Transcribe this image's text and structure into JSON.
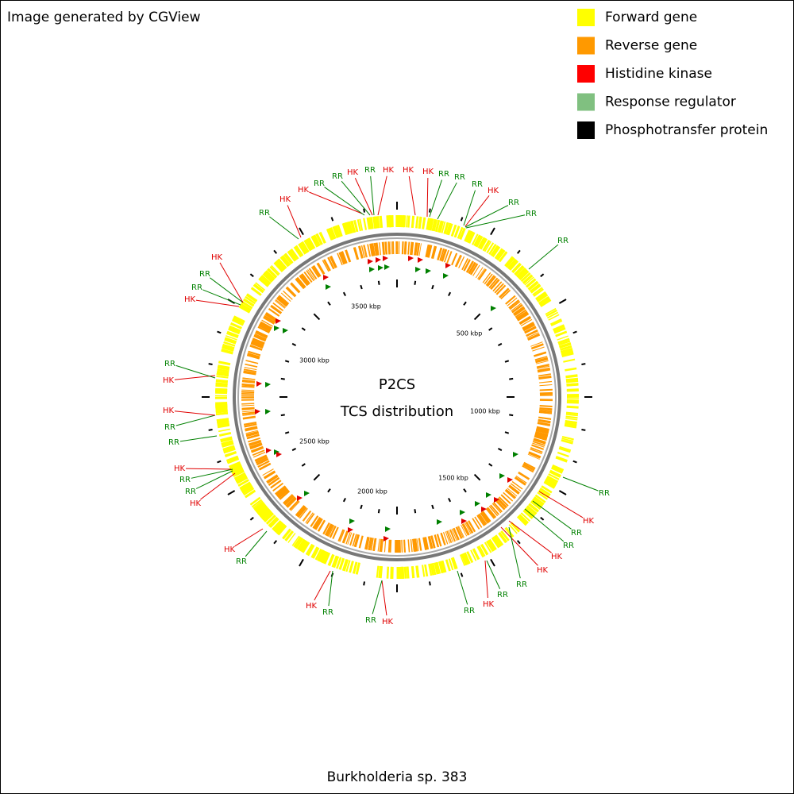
{
  "header": {
    "text": "Image generated by CGView"
  },
  "legend": [
    {
      "label": "Forward gene",
      "color": "#ffff00"
    },
    {
      "label": "Reverse gene",
      "color": "#ff9900"
    },
    {
      "label": "Histidine kinase",
      "color": "#ff0000"
    },
    {
      "label": "Response regulator",
      "color": "#80c080"
    },
    {
      "label": "Phosphotransfer protein",
      "color": "#000000"
    }
  ],
  "center": {
    "title": "P2CS",
    "subtitle": "TCS distribution"
  },
  "scale_labels": [
    "500 kbp",
    "1000 kbp",
    "1500 kbp",
    "2000 kbp",
    "2500 kbp",
    "3000 kbp",
    "3500 kbp"
  ],
  "feature_labels": [
    {
      "text": "HK"
    },
    {
      "text": "HK"
    },
    {
      "text": "HK"
    },
    {
      "text": "RR"
    },
    {
      "text": "RR"
    },
    {
      "text": "RR"
    },
    {
      "text": "HK"
    },
    {
      "text": "RR"
    },
    {
      "text": "RR"
    },
    {
      "text": "RR"
    },
    {
      "text": "RR"
    },
    {
      "text": "HK"
    },
    {
      "text": "RR"
    },
    {
      "text": "RR"
    },
    {
      "text": "HK"
    },
    {
      "text": "HK"
    },
    {
      "text": "RR"
    },
    {
      "text": "RR"
    },
    {
      "text": "HK"
    },
    {
      "text": "RR"
    },
    {
      "text": "HK"
    },
    {
      "text": "RR"
    },
    {
      "text": "RR"
    },
    {
      "text": "HK"
    },
    {
      "text": "RR"
    },
    {
      "text": "HK"
    },
    {
      "text": "HK"
    },
    {
      "text": "RR"
    },
    {
      "text": "RR"
    },
    {
      "text": "HK"
    },
    {
      "text": "RR"
    },
    {
      "text": "RR"
    },
    {
      "text": "HK"
    },
    {
      "text": "HK"
    },
    {
      "text": "RR"
    },
    {
      "text": "HK"
    },
    {
      "text": "RR"
    },
    {
      "text": "RR"
    },
    {
      "text": "HK"
    },
    {
      "text": "RR"
    },
    {
      "text": "HK"
    },
    {
      "text": "HK"
    },
    {
      "text": "RR"
    },
    {
      "text": "RR"
    },
    {
      "text": "HK"
    },
    {
      "text": "RR"
    }
  ],
  "footer": "Burkholderia sp. 383"
}
